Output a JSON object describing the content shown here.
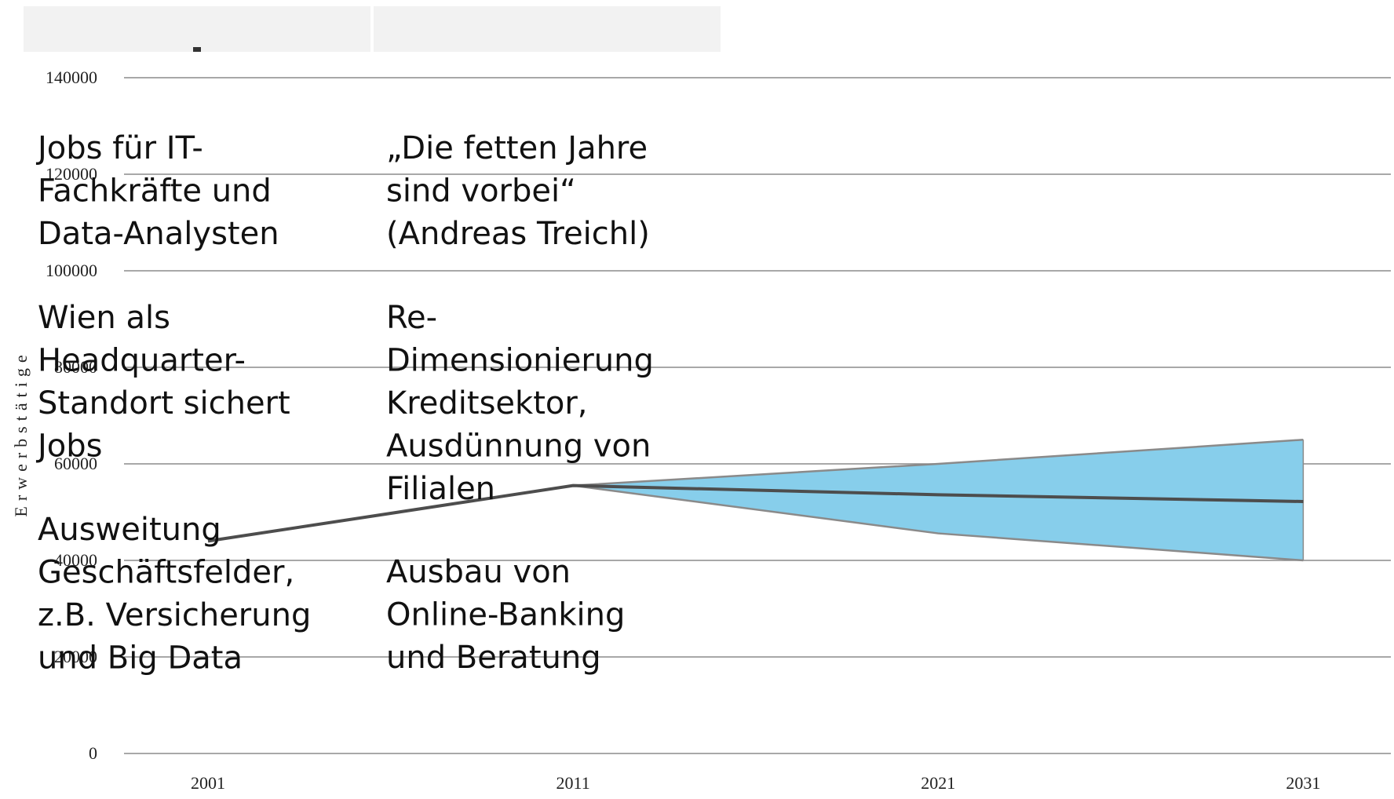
{
  "chart_data": {
    "type": "line",
    "y_axis_label": "Erwerbstätige",
    "x": [
      2001,
      2011,
      2021,
      2031
    ],
    "values": [
      44000,
      55500,
      53600,
      52200
    ],
    "color": "#4d4d4d",
    "band": {
      "x": [
        2011,
        2021,
        2031
      ],
      "upper": [
        55500,
        60000,
        65000
      ],
      "lower": [
        55500,
        45600,
        40000
      ],
      "color": "#87ceeb",
      "edge_color": "#8a8a8a"
    },
    "xlim": [
      1998.7,
      2033.4
    ],
    "xticks": [
      2001,
      2011,
      2021,
      2031
    ],
    "ylim": [
      0,
      140000
    ],
    "yticks": [
      0,
      20000,
      40000,
      60000,
      80000,
      100000,
      120000,
      140000
    ],
    "grid": true,
    "annotations": [
      {
        "column": 0,
        "lines": [
          "Jobs für IT-",
          "Fachkräfte und",
          "Data-Analysten"
        ]
      },
      {
        "column": 0,
        "lines": [
          "Wien als",
          "Headquarter-",
          "Standort sichert",
          "Jobs"
        ]
      },
      {
        "column": 0,
        "lines": [
          "Ausweitung",
          "Geschäftsfelder,",
          "z.B. Versicherung",
          "und Big Data"
        ]
      },
      {
        "column": 1,
        "lines": [
          "„Die fetten Jahre",
          "sind vorbei“",
          "(Andreas Treichl)"
        ]
      },
      {
        "column": 1,
        "lines": [
          "Re-",
          "Dimensionierung",
          "Kreditsektor,",
          "Ausdünnung von",
          "Filialen"
        ]
      },
      {
        "column": 1,
        "lines": [
          "Ausbau von",
          "Online-Banking",
          "und Beratung"
        ]
      }
    ]
  }
}
